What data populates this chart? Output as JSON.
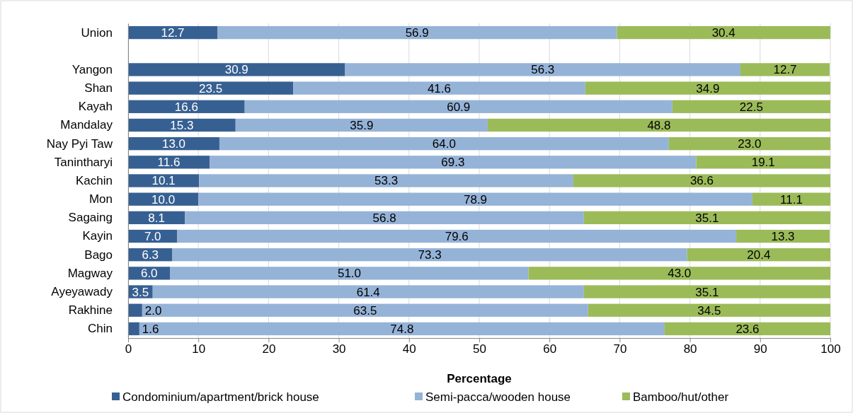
{
  "chart_data": {
    "type": "bar",
    "orientation": "horizontal",
    "stacked": true,
    "xlabel": "Percentage",
    "categories": [
      "Union",
      null,
      "Yangon",
      "Shan",
      "Kayah",
      "Mandalay",
      "Nay Pyi Taw",
      "Tanintharyi",
      "Kachin",
      "Mon",
      "Sagaing",
      "Kayin",
      "Bago",
      "Magway",
      "Ayeyawady",
      "Rakhine",
      "Chin"
    ],
    "series": [
      {
        "name": "Condominium/apartment/brick house",
        "color": "#376092",
        "values": [
          12.7,
          null,
          30.9,
          23.5,
          16.6,
          15.3,
          13,
          11.6,
          10.1,
          10,
          8.1,
          7,
          6.3,
          6,
          3.5,
          2,
          1.6
        ],
        "value_labels": [
          "12.7",
          null,
          "30.9",
          "23.5",
          "16.6",
          "15.3",
          "13.0",
          "11.6",
          "10.1",
          "10.0",
          "8.1",
          "7.0",
          "6.3",
          "6.0",
          "3.5",
          "2.0",
          "1.6"
        ]
      },
      {
        "name": "Semi-pacca/wooden house",
        "color": "#95b3d7",
        "values": [
          56.9,
          null,
          56.3,
          41.6,
          60.9,
          35.9,
          64,
          69.3,
          53.3,
          78.9,
          56.8,
          79.6,
          73.3,
          51,
          61.4,
          63.5,
          74.8
        ],
        "value_labels": [
          "56.9",
          null,
          "56.3",
          "41.6",
          "60.9",
          "35.9",
          "64.0",
          "69.3",
          "53.3",
          "78.9",
          "56.8",
          "79.6",
          "73.3",
          "51.0",
          "61.4",
          "63.5",
          "74.8"
        ]
      },
      {
        "name": "Bamboo/hut/other",
        "color": "#9bbb59",
        "values": [
          30.4,
          null,
          12.7,
          34.9,
          22.5,
          48.8,
          23,
          19.1,
          36.6,
          11.1,
          35.1,
          13.3,
          20.4,
          43,
          35.1,
          34.5,
          23.6
        ],
        "value_labels": [
          "30.4",
          null,
          "12.7",
          "34.9",
          "22.5",
          "48.8",
          "23.0",
          "19.1",
          "36.6",
          "11.1",
          "35.1",
          "13.3",
          "20.4",
          "43.0",
          "35.1",
          "34.5",
          "23.6"
        ]
      }
    ],
    "xlim": [
      0,
      100
    ],
    "xticks": [
      0,
      10,
      20,
      30,
      40,
      50,
      60,
      70,
      80,
      90,
      100
    ],
    "grid": "x",
    "legend": "bottom"
  }
}
